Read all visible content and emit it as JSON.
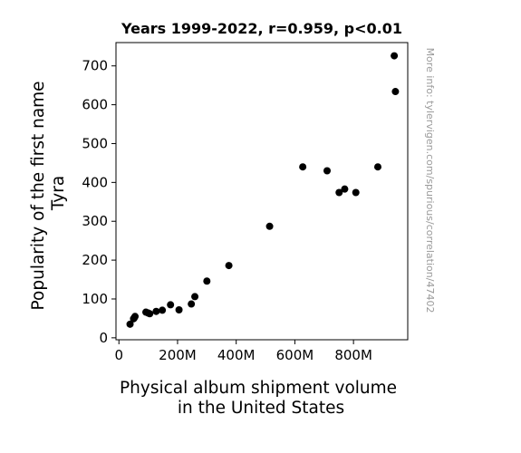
{
  "chart_data": {
    "type": "scatter",
    "title": "Years 1999-2022, r=0.959, p<0.01",
    "xlabel": [
      "Physical album shipment volume",
      "in the United States"
    ],
    "ylabel": [
      "Popularity of the first name",
      "Tyra"
    ],
    "side_note": "More info: tylervigen.com/spurious/correlation/47402",
    "xlim": [
      -10000000,
      985000000
    ],
    "ylim": [
      -5,
      760
    ],
    "x_ticks": [
      {
        "value": 0,
        "label": "0"
      },
      {
        "value": 200000000,
        "label": "200M"
      },
      {
        "value": 400000000,
        "label": "400M"
      },
      {
        "value": 600000000,
        "label": "600M"
      },
      {
        "value": 800000000,
        "label": "800M"
      }
    ],
    "y_ticks": [
      {
        "value": 0,
        "label": "0"
      },
      {
        "value": 100,
        "label": "100"
      },
      {
        "value": 200,
        "label": "200"
      },
      {
        "value": 300,
        "label": "300"
      },
      {
        "value": 400,
        "label": "400"
      },
      {
        "value": 500,
        "label": "500"
      },
      {
        "value": 600,
        "label": "600"
      },
      {
        "value": 700,
        "label": "700"
      }
    ],
    "marker_color": "#000000",
    "points": [
      {
        "x": 939000000,
        "y": 726
      },
      {
        "x": 943000000,
        "y": 634
      },
      {
        "x": 883000000,
        "y": 440
      },
      {
        "x": 627000000,
        "y": 440
      },
      {
        "x": 710000000,
        "y": 430
      },
      {
        "x": 770000000,
        "y": 383
      },
      {
        "x": 751000000,
        "y": 374
      },
      {
        "x": 808000000,
        "y": 374
      },
      {
        "x": 514000000,
        "y": 287
      },
      {
        "x": 375000000,
        "y": 186
      },
      {
        "x": 300000000,
        "y": 146
      },
      {
        "x": 259000000,
        "y": 106
      },
      {
        "x": 247000000,
        "y": 87
      },
      {
        "x": 176000000,
        "y": 85
      },
      {
        "x": 205000000,
        "y": 72
      },
      {
        "x": 148000000,
        "y": 71
      },
      {
        "x": 127000000,
        "y": 68
      },
      {
        "x": 92000000,
        "y": 66
      },
      {
        "x": 99000000,
        "y": 64
      },
      {
        "x": 105000000,
        "y": 62
      },
      {
        "x": 55000000,
        "y": 55
      },
      {
        "x": 52000000,
        "y": 51
      },
      {
        "x": 50000000,
        "y": 49
      },
      {
        "x": 38000000,
        "y": 35
      }
    ]
  }
}
